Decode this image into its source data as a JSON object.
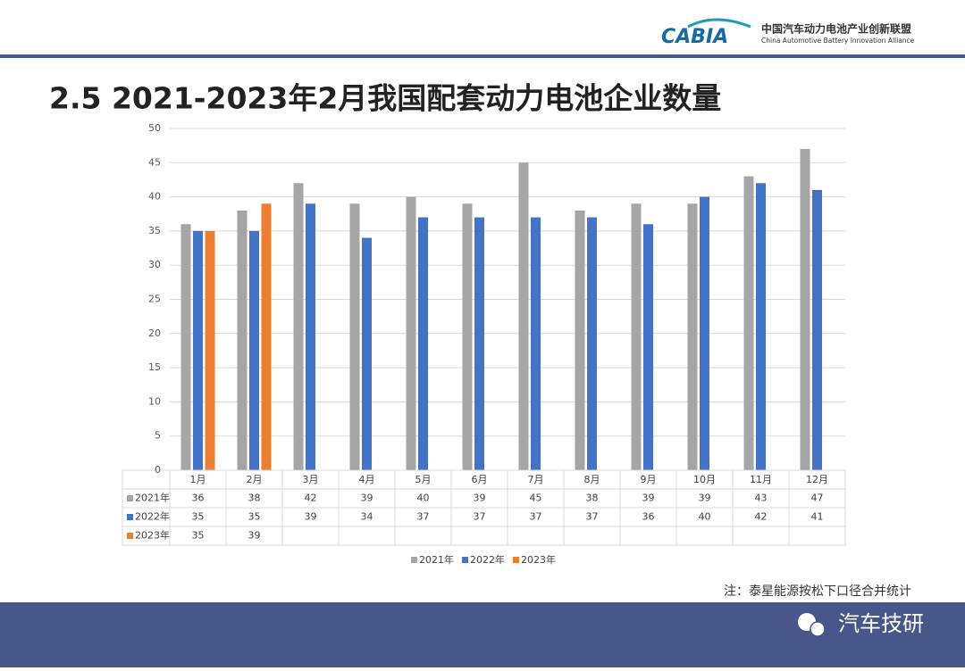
{
  "header": {
    "logo": "CABIA",
    "org_cn": "中国汽车动力电池产业创新联盟",
    "org_en": "China Automotive Battery Innovation Alliance"
  },
  "chart_data": {
    "type": "bar",
    "title": "2.5 2021-2023年2月我国配套动力电池企业数量",
    "categories": [
      "1月",
      "2月",
      "3月",
      "4月",
      "5月",
      "6月",
      "7月",
      "8月",
      "9月",
      "10月",
      "11月",
      "12月"
    ],
    "series": [
      {
        "name": "2021年",
        "color": "#a5a5a5",
        "values": [
          36,
          38,
          42,
          39,
          40,
          39,
          45,
          38,
          39,
          39,
          43,
          47
        ]
      },
      {
        "name": "2022年",
        "color": "#4472c4",
        "values": [
          35,
          35,
          39,
          34,
          37,
          37,
          37,
          37,
          36,
          40,
          42,
          41
        ]
      },
      {
        "name": "2023年",
        "color": "#ed7d31",
        "values": [
          35,
          39,
          null,
          null,
          null,
          null,
          null,
          null,
          null,
          null,
          null,
          null
        ]
      }
    ],
    "ylim": [
      0,
      50
    ],
    "yticks": [
      0,
      5,
      10,
      15,
      20,
      25,
      30,
      35,
      40,
      45,
      50
    ],
    "grid": true,
    "legend": "bottom"
  },
  "note": "注：泰星能源按松下口径合并统计",
  "footer": {
    "brand": "汽车技研"
  }
}
